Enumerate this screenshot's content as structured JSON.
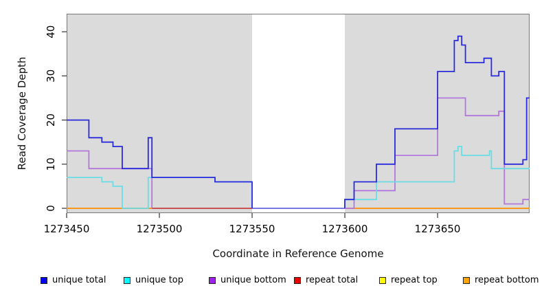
{
  "chart_data": {
    "type": "line",
    "step": true,
    "title": "",
    "xlabel": "Coordinate in Reference Genome",
    "ylabel": "Read Coverage Depth",
    "xlim": [
      1273450,
      1273699.6
    ],
    "ylim": [
      0,
      44
    ],
    "x_ticks": [
      "1273450",
      "1273500",
      "1273550",
      "1273600",
      "1273650"
    ],
    "x_tick_values": [
      1273450,
      1273500,
      1273550,
      1273600,
      1273650
    ],
    "y_ticks": [
      "0",
      "10",
      "20",
      "30",
      "40"
    ],
    "y_tick_values": [
      0,
      10,
      20,
      30,
      40
    ],
    "grid": false,
    "legend_position": "bottom",
    "plot_background": "#ffffff",
    "shade_color": "#dbdbdb",
    "shaded_regions": [
      [
        1273450,
        1273550
      ],
      [
        1273600,
        1273699.6
      ]
    ],
    "gap_region": [
      1273550,
      1273600
    ],
    "gap_line": {
      "value": 0,
      "color": "#6565df",
      "x0": 1273550,
      "x1": 1273600,
      "z": 4
    },
    "series": [
      {
        "key": "unique_total",
        "label": "unique total",
        "line_color": "#2a2adc",
        "legend_color": "#0000ee",
        "z": 7,
        "segments": [
          {
            "points": [
              [
                1273450,
                20
              ],
              [
                1273462,
                16
              ],
              [
                1273469,
                15
              ],
              [
                1273475,
                14
              ],
              [
                1273480,
                9
              ],
              [
                1273494,
                16
              ],
              [
                1273496,
                7
              ],
              [
                1273530,
                6
              ],
              [
                1273550,
                0
              ]
            ],
            "end": 1273550
          },
          {
            "points": [
              [
                1273600,
                0
              ],
              [
                1273600,
                2
              ],
              [
                1273605,
                6
              ],
              [
                1273617,
                10
              ],
              [
                1273627,
                18
              ],
              [
                1273650,
                31
              ],
              [
                1273659,
                38
              ],
              [
                1273661,
                39
              ],
              [
                1273663,
                37
              ],
              [
                1273665,
                33
              ],
              [
                1273675,
                34
              ],
              [
                1273679,
                30
              ],
              [
                1273683,
                31
              ],
              [
                1273686,
                10
              ],
              [
                1273696,
                11
              ],
              [
                1273698,
                25
              ]
            ],
            "end": 1273699.6
          }
        ]
      },
      {
        "key": "unique_top",
        "label": "unique top",
        "line_color": "#69dce4",
        "legend_color": "#00ffff",
        "z": 6,
        "segments": [
          {
            "points": [
              [
                1273450,
                7
              ],
              [
                1273469,
                6
              ],
              [
                1273475,
                5
              ],
              [
                1273480,
                0
              ],
              [
                1273494,
                7
              ],
              [
                1273530,
                6
              ],
              [
                1273550,
                0
              ]
            ],
            "end": 1273550
          },
          {
            "points": [
              [
                1273600,
                0
              ],
              [
                1273600,
                2
              ],
              [
                1273617,
                6
              ],
              [
                1273659,
                13
              ],
              [
                1273661,
                14
              ],
              [
                1273663,
                12
              ],
              [
                1273678,
                13
              ],
              [
                1273679,
                9
              ]
            ],
            "end": 1273699.6
          }
        ]
      },
      {
        "key": "unique_bottom",
        "label": "unique bottom",
        "line_color": "#b277db",
        "legend_color": "#a020f0",
        "z": 5,
        "segments": [
          {
            "points": [
              [
                1273450,
                13
              ],
              [
                1273462,
                9
              ],
              [
                1273496,
                0
              ]
            ],
            "end": 1273496
          },
          {
            "points": [
              [
                1273600,
                0
              ],
              [
                1273605,
                4
              ],
              [
                1273627,
                12
              ],
              [
                1273650,
                25
              ],
              [
                1273665,
                21
              ],
              [
                1273683,
                22
              ],
              [
                1273686,
                1
              ],
              [
                1273696,
                2
              ]
            ],
            "end": 1273699.6
          }
        ]
      },
      {
        "key": "repeat_total",
        "label": "repeat total",
        "line_color": "#c23b55",
        "legend_color": "#ee0000",
        "z": 2,
        "segments": [
          {
            "points": [
              [
                1273450,
                0
              ]
            ],
            "end": 1273550
          },
          {
            "points": [
              [
                1273600,
                0
              ]
            ],
            "end": 1273699.6
          }
        ]
      },
      {
        "key": "repeat_top",
        "label": "repeat top",
        "line_color": "#f0f000",
        "legend_color": "#ffff00",
        "z": 1,
        "segments": [
          {
            "points": [
              [
                1273450,
                0
              ]
            ],
            "end": 1273550
          },
          {
            "points": [
              [
                1273600,
                0
              ]
            ],
            "end": 1273699.6
          }
        ]
      },
      {
        "key": "repeat_bottom",
        "label": "repeat bottom",
        "line_color": "#ff9e15",
        "legend_color": "#ffa500",
        "z": 3,
        "segments": [
          {
            "points": [
              [
                1273450,
                0
              ]
            ],
            "end": 1273496
          },
          {
            "points": [
              [
                1273600,
                0
              ]
            ],
            "end": 1273699.6
          }
        ]
      }
    ]
  }
}
